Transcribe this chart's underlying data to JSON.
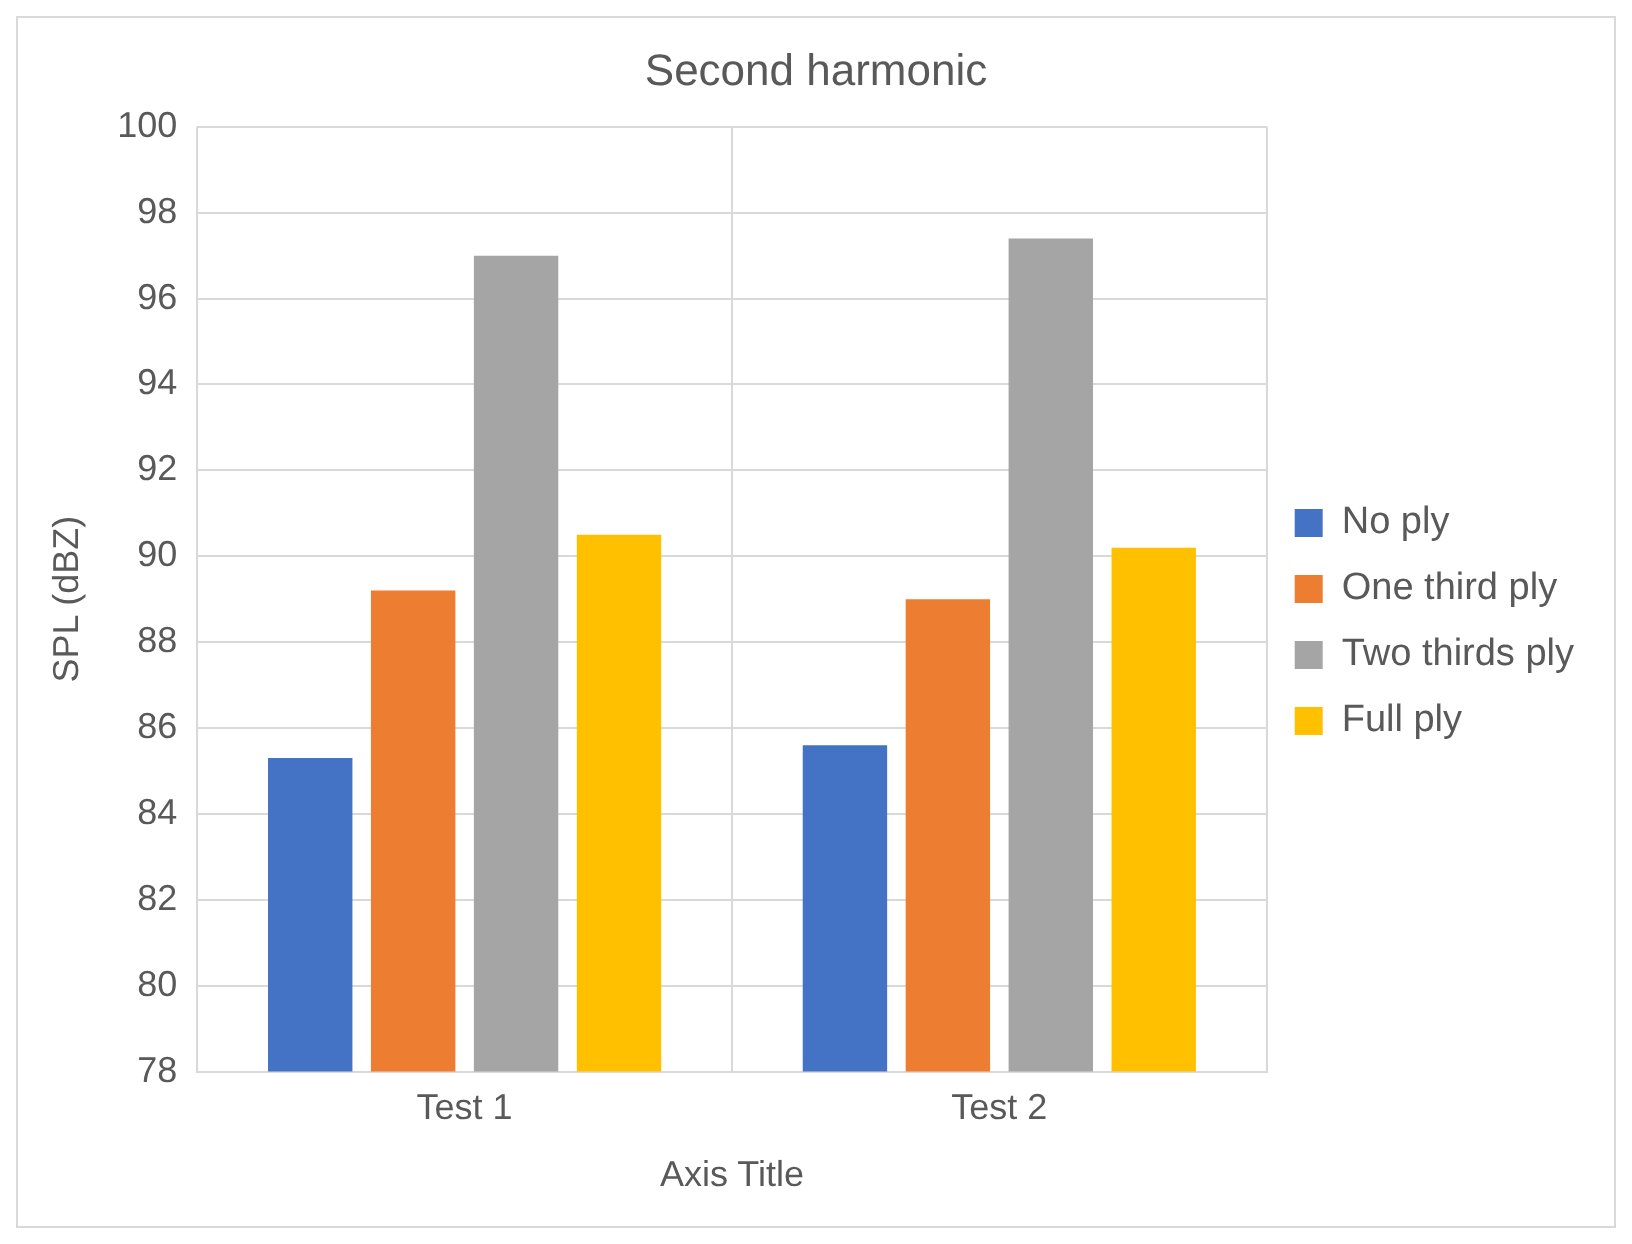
{
  "chart_data": {
    "type": "bar",
    "title": "Second harmonic",
    "xlabel": "Axis Title",
    "ylabel": "SPL (dBZ)",
    "categories": [
      "Test 1",
      "Test 2"
    ],
    "series": [
      {
        "name": "No ply",
        "color": "#4472c4",
        "values": [
          85.3,
          85.6
        ]
      },
      {
        "name": "One third ply",
        "color": "#ed7d31",
        "values": [
          89.2,
          89.0
        ]
      },
      {
        "name": "Two thirds ply",
        "color": "#a5a5a5",
        "values": [
          97.0,
          97.4
        ]
      },
      {
        "name": "Full ply",
        "color": "#ffc000",
        "values": [
          90.5,
          90.2
        ]
      }
    ],
    "ylim": [
      78,
      100
    ],
    "yticks": [
      78,
      80,
      82,
      84,
      86,
      88,
      90,
      92,
      94,
      96,
      98,
      100
    ],
    "grid": true,
    "legend": "right"
  }
}
